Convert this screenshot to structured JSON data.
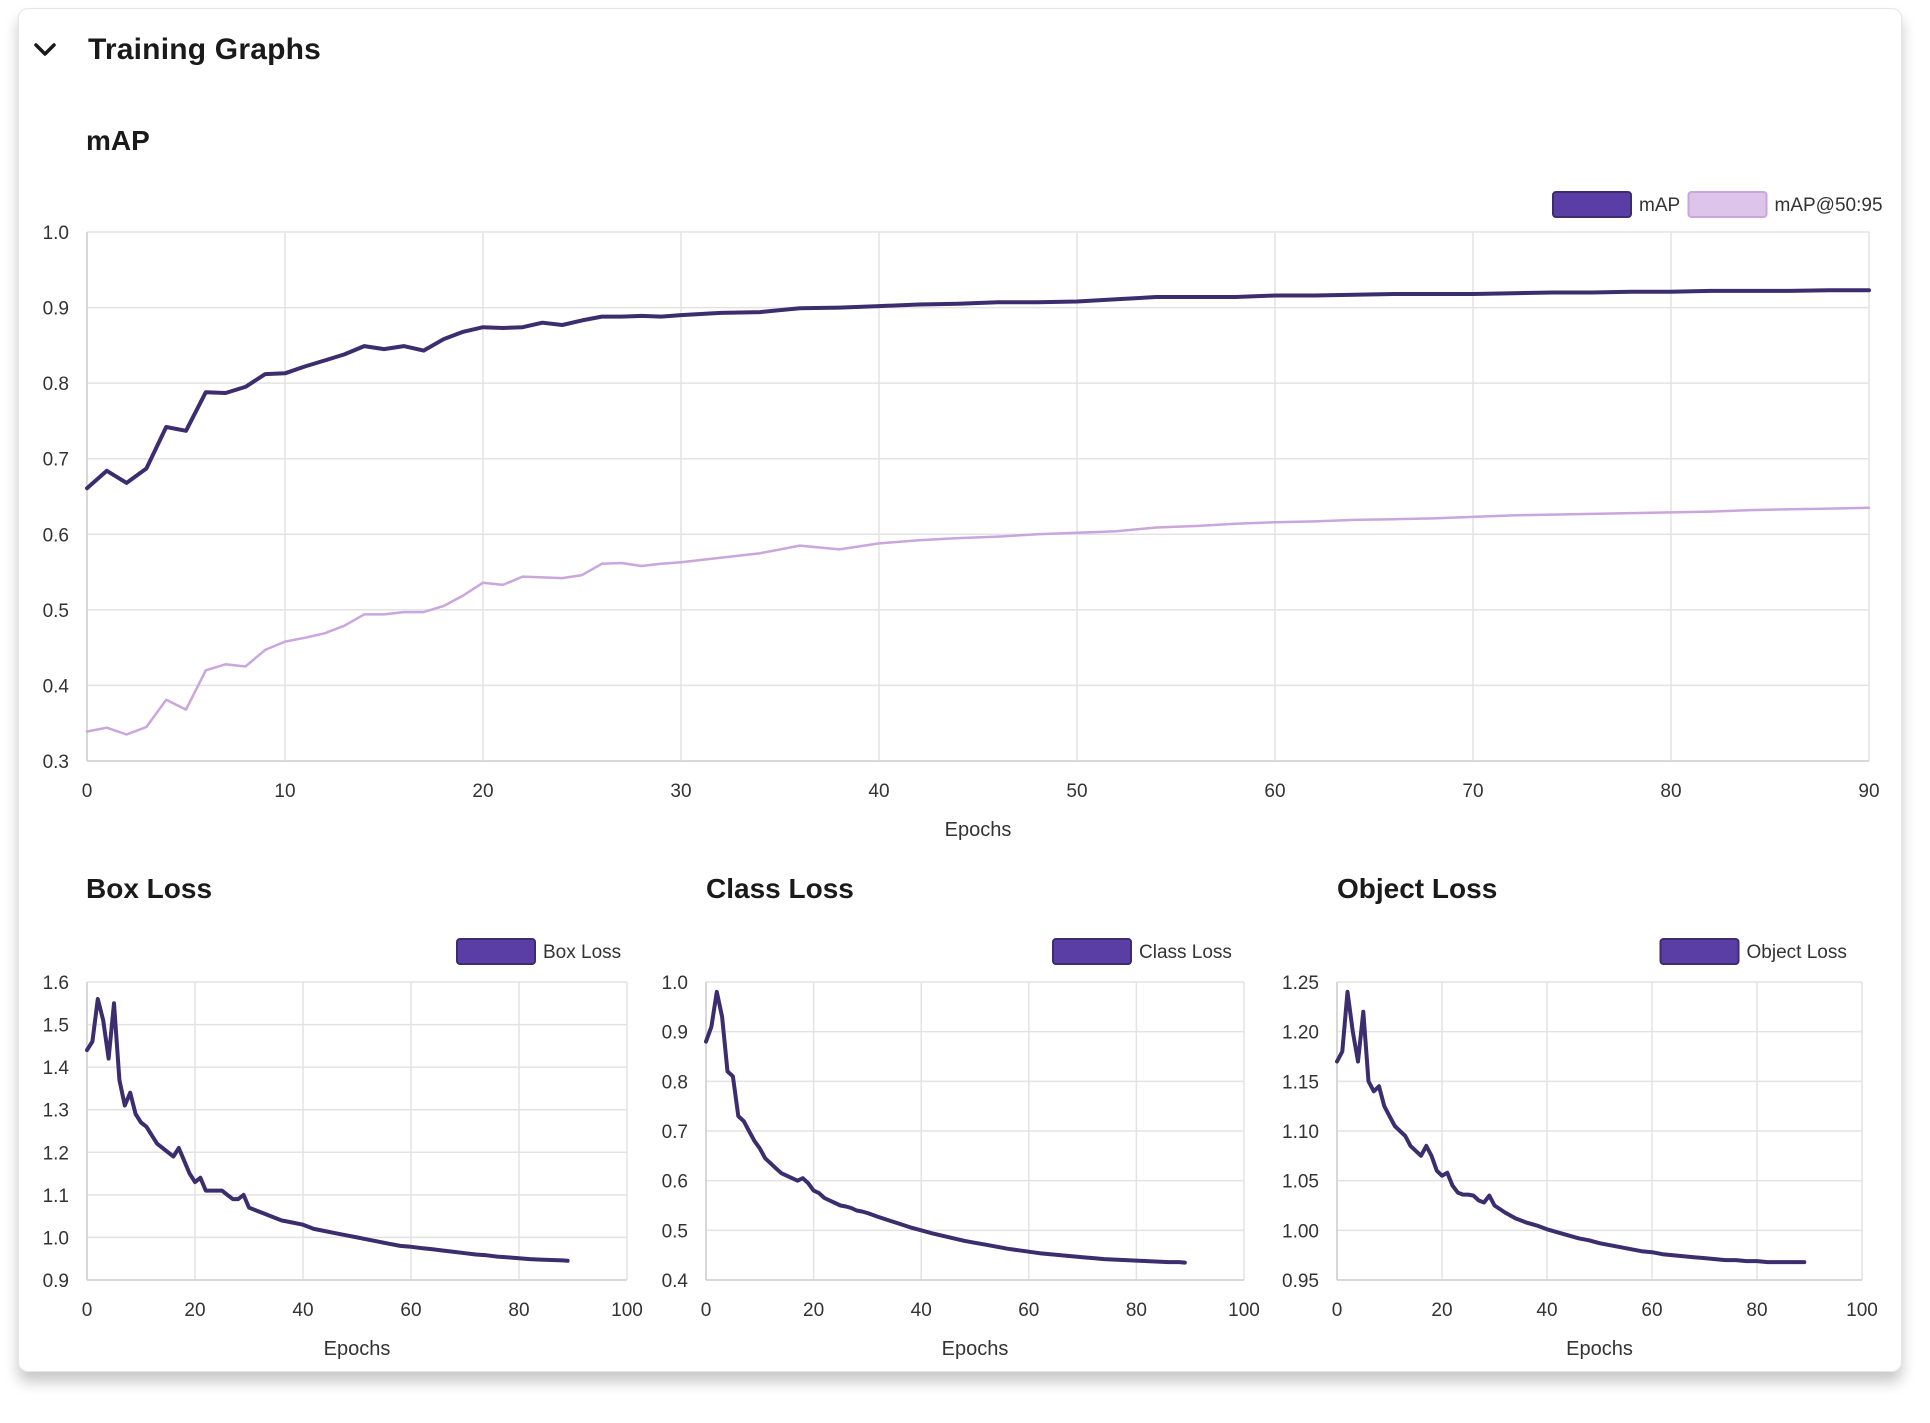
{
  "header": {
    "title": "Training Graphs",
    "toggle_icon": "chevron-down-icon"
  },
  "colors": {
    "primary": "#3b2d6e",
    "primary_fill": "#5a3ea5",
    "secondary": "#c9a6db",
    "secondary_fill": "#ddc4ea",
    "grid": "#e3e3e3"
  },
  "chart_data": [
    {
      "id": "map",
      "type": "line",
      "title": "mAP",
      "xlabel": "Epochs",
      "ylabel": "",
      "xlim": [
        0,
        90
      ],
      "ylim": [
        0.3,
        1.0
      ],
      "xticks": [
        0,
        10,
        20,
        30,
        40,
        50,
        60,
        70,
        80,
        90
      ],
      "yticks": [
        0.3,
        0.4,
        0.5,
        0.6,
        0.7,
        0.8,
        0.9,
        1.0
      ],
      "tick_decimals": 1,
      "legend": "top-right",
      "series": [
        {
          "name": "mAP",
          "style": "primary",
          "x": [
            0,
            1,
            2,
            3,
            4,
            5,
            6,
            7,
            8,
            9,
            10,
            11,
            12,
            13,
            14,
            15,
            16,
            17,
            18,
            19,
            20,
            21,
            22,
            23,
            24,
            25,
            26,
            27,
            28,
            29,
            30,
            32,
            34,
            36,
            38,
            40,
            42,
            44,
            46,
            48,
            50,
            52,
            54,
            56,
            58,
            60,
            62,
            64,
            66,
            68,
            70,
            72,
            74,
            76,
            78,
            80,
            82,
            84,
            86,
            88,
            90
          ],
          "y": [
            0.661,
            0.684,
            0.668,
            0.687,
            0.742,
            0.737,
            0.788,
            0.787,
            0.795,
            0.812,
            0.813,
            0.822,
            0.83,
            0.838,
            0.849,
            0.845,
            0.849,
            0.843,
            0.858,
            0.868,
            0.874,
            0.873,
            0.874,
            0.88,
            0.877,
            0.883,
            0.888,
            0.888,
            0.889,
            0.888,
            0.89,
            0.893,
            0.894,
            0.899,
            0.9,
            0.902,
            0.904,
            0.905,
            0.907,
            0.907,
            0.908,
            0.911,
            0.914,
            0.914,
            0.914,
            0.916,
            0.916,
            0.917,
            0.918,
            0.918,
            0.918,
            0.919,
            0.92,
            0.92,
            0.921,
            0.921,
            0.922,
            0.922,
            0.922,
            0.923,
            0.923
          ]
        },
        {
          "name": "mAP@50:95",
          "style": "secondary",
          "x": [
            0,
            1,
            2,
            3,
            4,
            5,
            6,
            7,
            8,
            9,
            10,
            11,
            12,
            13,
            14,
            15,
            16,
            17,
            18,
            19,
            20,
            21,
            22,
            23,
            24,
            25,
            26,
            27,
            28,
            29,
            30,
            32,
            34,
            36,
            38,
            40,
            42,
            44,
            46,
            48,
            50,
            52,
            54,
            56,
            58,
            60,
            62,
            64,
            66,
            68,
            70,
            72,
            74,
            76,
            78,
            80,
            82,
            84,
            86,
            88,
            90
          ],
          "y": [
            0.339,
            0.344,
            0.335,
            0.345,
            0.381,
            0.368,
            0.42,
            0.428,
            0.425,
            0.447,
            0.458,
            0.463,
            0.469,
            0.479,
            0.494,
            0.494,
            0.497,
            0.497,
            0.505,
            0.519,
            0.536,
            0.533,
            0.544,
            0.543,
            0.542,
            0.546,
            0.561,
            0.562,
            0.558,
            0.561,
            0.563,
            0.569,
            0.575,
            0.585,
            0.58,
            0.588,
            0.592,
            0.595,
            0.597,
            0.6,
            0.602,
            0.604,
            0.609,
            0.611,
            0.614,
            0.616,
            0.617,
            0.619,
            0.62,
            0.621,
            0.623,
            0.625,
            0.626,
            0.627,
            0.628,
            0.629,
            0.63,
            0.632,
            0.633,
            0.634,
            0.635
          ]
        }
      ]
    },
    {
      "id": "box",
      "type": "line",
      "title": "Box Loss",
      "xlabel": "Epochs",
      "ylabel": "",
      "xlim": [
        0,
        100
      ],
      "ylim": [
        0.9,
        1.6
      ],
      "xticks": [
        0,
        20,
        40,
        60,
        80,
        100
      ],
      "yticks": [
        0.9,
        1.0,
        1.1,
        1.2,
        1.3,
        1.4,
        1.5,
        1.6
      ],
      "tick_decimals": 1,
      "legend": "top-right",
      "series": [
        {
          "name": "Box Loss",
          "style": "primary",
          "x": [
            0,
            1,
            2,
            3,
            4,
            5,
            6,
            7,
            8,
            9,
            10,
            11,
            12,
            13,
            14,
            15,
            16,
            17,
            18,
            19,
            20,
            21,
            22,
            23,
            24,
            25,
            26,
            27,
            28,
            29,
            30,
            32,
            34,
            36,
            38,
            40,
            42,
            44,
            46,
            48,
            50,
            52,
            54,
            56,
            58,
            60,
            62,
            64,
            66,
            68,
            70,
            72,
            74,
            76,
            78,
            80,
            82,
            84,
            86,
            88,
            89
          ],
          "y": [
            1.44,
            1.46,
            1.56,
            1.51,
            1.42,
            1.55,
            1.37,
            1.31,
            1.34,
            1.29,
            1.27,
            1.26,
            1.24,
            1.22,
            1.21,
            1.2,
            1.19,
            1.21,
            1.18,
            1.15,
            1.13,
            1.14,
            1.11,
            1.11,
            1.11,
            1.11,
            1.1,
            1.09,
            1.09,
            1.1,
            1.07,
            1.06,
            1.05,
            1.04,
            1.035,
            1.03,
            1.02,
            1.015,
            1.01,
            1.005,
            1.0,
            0.995,
            0.99,
            0.985,
            0.98,
            0.978,
            0.975,
            0.972,
            0.969,
            0.966,
            0.963,
            0.96,
            0.958,
            0.955,
            0.953,
            0.951,
            0.949,
            0.948,
            0.947,
            0.946,
            0.945
          ]
        }
      ]
    },
    {
      "id": "class",
      "type": "line",
      "title": "Class Loss",
      "xlabel": "Epochs",
      "ylabel": "",
      "xlim": [
        0,
        100
      ],
      "ylim": [
        0.4,
        1.0
      ],
      "xticks": [
        0,
        20,
        40,
        60,
        80,
        100
      ],
      "yticks": [
        0.4,
        0.5,
        0.6,
        0.7,
        0.8,
        0.9,
        1.0
      ],
      "tick_decimals": 1,
      "legend": "top-right",
      "series": [
        {
          "name": "Class Loss",
          "style": "primary",
          "x": [
            0,
            1,
            2,
            3,
            4,
            5,
            6,
            7,
            8,
            9,
            10,
            11,
            12,
            13,
            14,
            15,
            16,
            17,
            18,
            19,
            20,
            21,
            22,
            23,
            24,
            25,
            26,
            27,
            28,
            29,
            30,
            32,
            34,
            36,
            38,
            40,
            42,
            44,
            46,
            48,
            50,
            52,
            54,
            56,
            58,
            60,
            62,
            64,
            66,
            68,
            70,
            72,
            74,
            76,
            78,
            80,
            82,
            84,
            86,
            88,
            89
          ],
          "y": [
            0.88,
            0.91,
            0.98,
            0.93,
            0.82,
            0.81,
            0.73,
            0.72,
            0.7,
            0.68,
            0.665,
            0.645,
            0.635,
            0.625,
            0.615,
            0.61,
            0.605,
            0.6,
            0.605,
            0.595,
            0.58,
            0.575,
            0.565,
            0.56,
            0.555,
            0.55,
            0.548,
            0.545,
            0.54,
            0.538,
            0.535,
            0.527,
            0.52,
            0.513,
            0.506,
            0.5,
            0.494,
            0.489,
            0.484,
            0.479,
            0.475,
            0.471,
            0.467,
            0.463,
            0.46,
            0.457,
            0.454,
            0.452,
            0.45,
            0.448,
            0.446,
            0.444,
            0.442,
            0.441,
            0.44,
            0.439,
            0.438,
            0.437,
            0.436,
            0.436,
            0.435
          ]
        }
      ]
    },
    {
      "id": "object",
      "type": "line",
      "title": "Object Loss",
      "xlabel": "Epochs",
      "ylabel": "",
      "xlim": [
        0,
        100
      ],
      "ylim": [
        0.95,
        1.25
      ],
      "xticks": [
        0,
        20,
        40,
        60,
        80,
        100
      ],
      "yticks": [
        0.95,
        1.0,
        1.05,
        1.1,
        1.15,
        1.2,
        1.25
      ],
      "tick_decimals": 2,
      "legend": "top-right",
      "series": [
        {
          "name": "Object Loss",
          "style": "primary",
          "x": [
            0,
            1,
            2,
            3,
            4,
            5,
            6,
            7,
            8,
            9,
            10,
            11,
            12,
            13,
            14,
            15,
            16,
            17,
            18,
            19,
            20,
            21,
            22,
            23,
            24,
            25,
            26,
            27,
            28,
            29,
            30,
            32,
            34,
            36,
            38,
            40,
            42,
            44,
            46,
            48,
            50,
            52,
            54,
            56,
            58,
            60,
            62,
            64,
            66,
            68,
            70,
            72,
            74,
            76,
            78,
            80,
            82,
            84,
            86,
            88,
            89
          ],
          "y": [
            1.17,
            1.18,
            1.24,
            1.2,
            1.17,
            1.22,
            1.15,
            1.14,
            1.145,
            1.125,
            1.115,
            1.105,
            1.1,
            1.095,
            1.085,
            1.08,
            1.075,
            1.085,
            1.075,
            1.06,
            1.055,
            1.058,
            1.045,
            1.038,
            1.036,
            1.036,
            1.035,
            1.03,
            1.028,
            1.035,
            1.025,
            1.018,
            1.012,
            1.008,
            1.005,
            1.001,
            0.998,
            0.995,
            0.992,
            0.99,
            0.987,
            0.985,
            0.983,
            0.981,
            0.979,
            0.978,
            0.976,
            0.975,
            0.974,
            0.973,
            0.972,
            0.971,
            0.97,
            0.97,
            0.969,
            0.969,
            0.968,
            0.968,
            0.968,
            0.968,
            0.968
          ]
        }
      ]
    }
  ]
}
